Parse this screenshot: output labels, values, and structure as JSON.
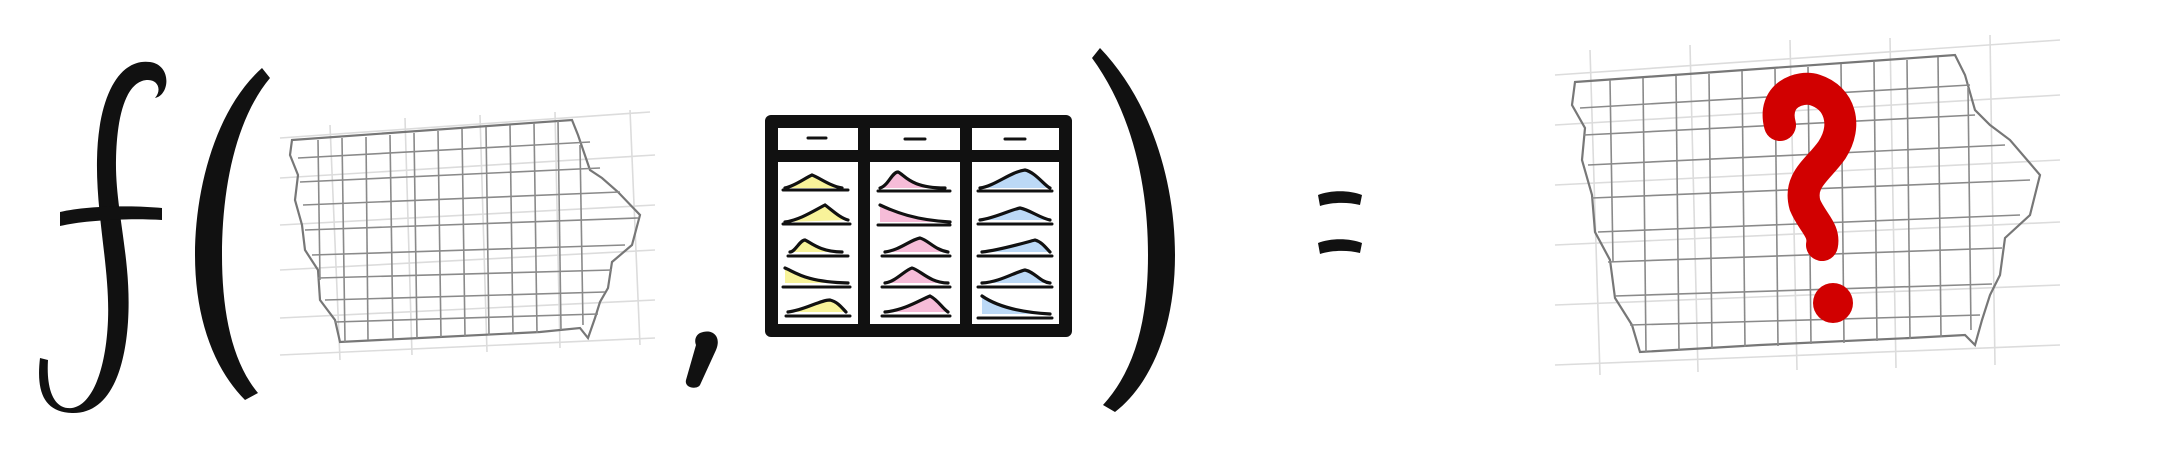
{
  "equation": {
    "function_symbol": "f",
    "separator": ",",
    "equals": "="
  },
  "maps": [
    {
      "name": "input-map",
      "region": "iowa-counties",
      "style": "outline"
    },
    {
      "name": "output-map",
      "region": "iowa-counties",
      "style": "outline"
    }
  ],
  "question_mark": {
    "glyph": "?",
    "color": "#d10000"
  },
  "table": {
    "columns": 3,
    "rows": 5,
    "column_colors": [
      "#f8f39a",
      "#f6bcd8",
      "#bcd9f6"
    ]
  },
  "colors": {
    "ink": "#111111",
    "county_lines": "#8a8a8a",
    "grid_lines": "#dcdcdc"
  }
}
